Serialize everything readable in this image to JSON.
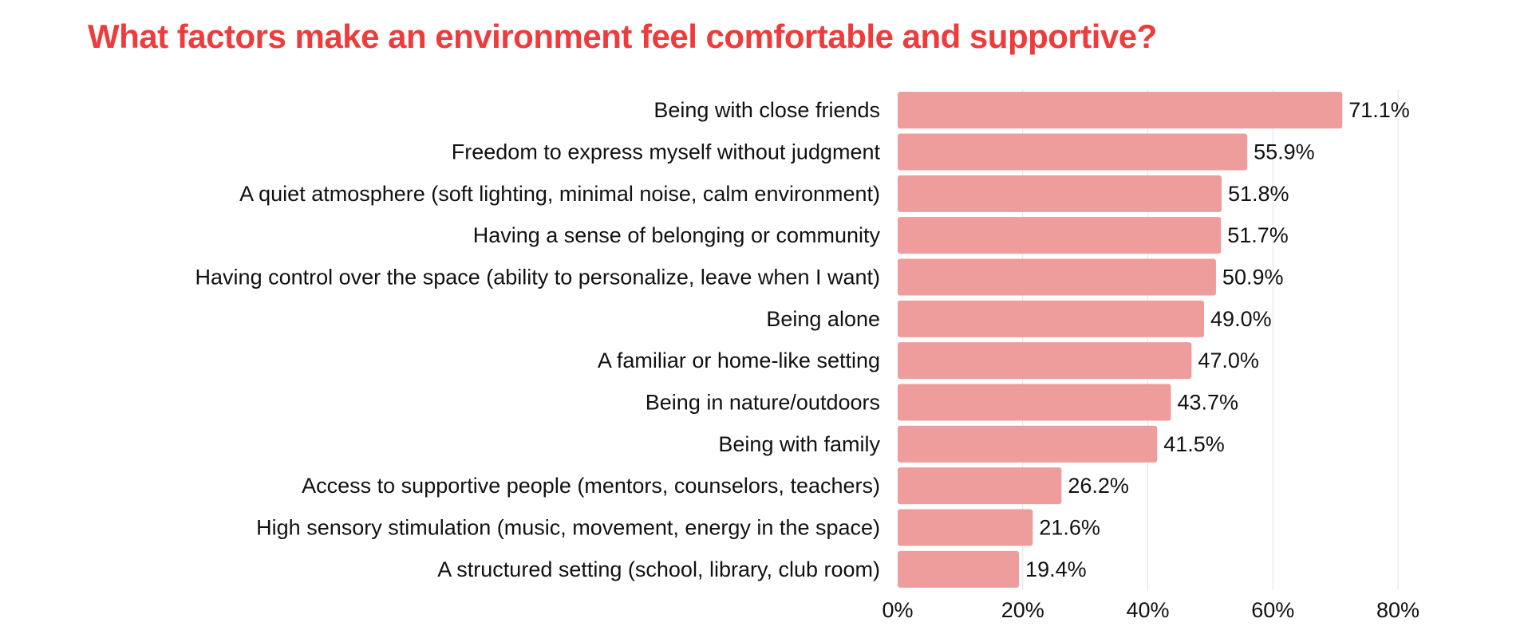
{
  "colors": {
    "title": "#ee3b3b",
    "bar": "#ee9c9c",
    "grid": "#e2e2e2",
    "text": "#111111"
  },
  "chart_data": {
    "type": "bar",
    "orientation": "horizontal",
    "title": "What factors make an environment feel comfortable and supportive?",
    "categories": [
      "Being with close friends",
      "Freedom to express myself without judgment",
      "A quiet atmosphere (soft lighting, minimal noise, calm environment)",
      "Having a sense of belonging or community",
      "Having control over the space (ability to personalize, leave when I want)",
      "Being alone",
      "A familiar or home-like setting",
      "Being in nature/outdoors",
      "Being with family",
      "Access to supportive people (mentors, counselors, teachers)",
      "High sensory stimulation (music, movement, energy in the space)",
      "A structured setting (school, library, club room)"
    ],
    "values": [
      71.1,
      55.9,
      51.8,
      51.7,
      50.9,
      49.0,
      47.0,
      43.7,
      41.5,
      26.2,
      21.6,
      19.4
    ],
    "value_labels": [
      "71.1%",
      "55.9%",
      "51.8%",
      "51.7%",
      "50.9%",
      "49.0%",
      "47.0%",
      "43.7%",
      "41.5%",
      "26.2%",
      "21.6%",
      "19.4%"
    ],
    "xlim": [
      0,
      80
    ],
    "xticks": [
      0,
      20,
      40,
      60,
      80
    ],
    "xtick_labels": [
      "0%",
      "20%",
      "40%",
      "60%",
      "80%"
    ],
    "grid": "vertical",
    "legend": "none"
  }
}
